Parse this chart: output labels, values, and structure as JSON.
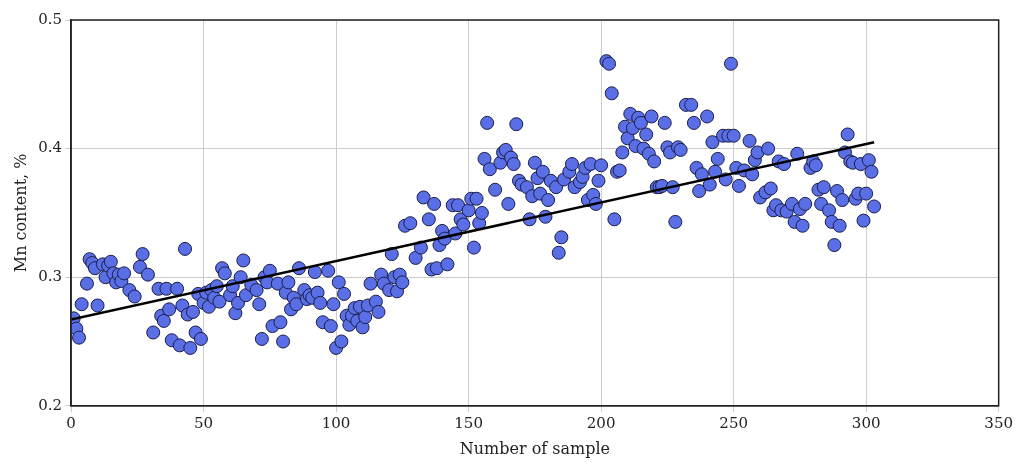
{
  "chart_data": {
    "type": "scatter",
    "xlabel": "Number of sample",
    "ylabel": "Mn content, %",
    "xlim": [
      0,
      350
    ],
    "xticks": [
      0,
      50,
      100,
      150,
      200,
      250,
      300,
      350
    ],
    "ylim": [
      0.2,
      0.5
    ],
    "yticks": [
      0.2,
      0.3,
      0.4,
      0.5
    ],
    "grid": true,
    "legend": false,
    "marker": "circle",
    "series": [
      {
        "type": "scatter",
        "color": "#5a6ee6",
        "x": [
          1,
          2,
          3,
          4,
          6,
          7,
          8,
          9,
          10,
          12,
          13,
          14,
          15,
          16,
          17,
          18,
          19,
          20,
          22,
          24,
          26,
          27,
          29,
          31,
          33,
          34,
          35,
          36,
          37,
          38,
          40,
          41,
          42,
          43,
          44,
          45,
          46,
          47,
          48,
          49,
          50,
          51,
          52,
          53,
          54,
          55,
          56,
          57,
          58,
          60,
          61,
          62,
          63,
          64,
          65,
          66,
          68,
          70,
          71,
          72,
          73,
          74,
          75,
          76,
          78,
          79,
          80,
          81,
          82,
          83,
          84,
          85,
          86,
          88,
          89,
          90,
          91,
          92,
          93,
          94,
          95,
          97,
          98,
          99,
          100,
          101,
          102,
          103,
          104,
          105,
          106,
          107,
          108,
          109,
          110,
          111,
          112,
          113,
          115,
          116,
          117,
          118,
          120,
          121,
          122,
          123,
          124,
          125,
          126,
          128,
          130,
          132,
          133,
          135,
          136,
          137,
          138,
          139,
          140,
          141,
          142,
          144,
          145,
          146,
          147,
          148,
          150,
          151,
          152,
          153,
          154,
          155,
          156,
          157,
          158,
          160,
          162,
          163,
          164,
          165,
          166,
          167,
          168,
          169,
          170,
          172,
          173,
          174,
          175,
          176,
          177,
          178,
          179,
          180,
          181,
          183,
          184,
          185,
          186,
          188,
          189,
          190,
          192,
          193,
          194,
          195,
          196,
          197,
          198,
          199,
          200,
          202,
          203,
          204,
          205,
          206,
          207,
          208,
          209,
          210,
          211,
          212,
          213,
          214,
          215,
          216,
          217,
          218,
          219,
          220,
          221,
          222,
          223,
          224,
          225,
          226,
          227,
          228,
          229,
          230,
          232,
          234,
          235,
          236,
          237,
          238,
          240,
          241,
          242,
          243,
          244,
          246,
          247,
          248,
          249,
          250,
          251,
          252,
          254,
          256,
          257,
          258,
          259,
          260,
          262,
          263,
          264,
          265,
          266,
          267,
          268,
          269,
          270,
          272,
          273,
          274,
          275,
          276,
          277,
          279,
          280,
          281,
          282,
          283,
          284,
          286,
          287,
          288,
          289,
          290,
          291,
          292,
          293,
          294,
          295,
          296,
          297,
          298,
          299,
          300,
          301,
          302,
          303
        ],
        "values": [
          0.268,
          0.26,
          0.253,
          0.279,
          0.295,
          0.314,
          0.311,
          0.307,
          0.278,
          0.31,
          0.3,
          0.309,
          0.312,
          0.303,
          0.296,
          0.302,
          0.297,
          0.303,
          0.29,
          0.285,
          0.308,
          0.318,
          0.302,
          0.257,
          0.291,
          0.27,
          0.266,
          0.291,
          0.275,
          0.251,
          0.291,
          0.247,
          0.278,
          0.322,
          0.271,
          0.245,
          0.273,
          0.257,
          0.287,
          0.252,
          0.28,
          0.288,
          0.277,
          0.29,
          0.284,
          0.293,
          0.281,
          0.307,
          0.303,
          0.286,
          0.293,
          0.272,
          0.28,
          0.3,
          0.313,
          0.286,
          0.294,
          0.29,
          0.279,
          0.252,
          0.3,
          0.296,
          0.305,
          0.262,
          0.295,
          0.265,
          0.25,
          0.288,
          0.296,
          0.275,
          0.284,
          0.279,
          0.307,
          0.29,
          0.283,
          0.286,
          0.284,
          0.304,
          0.288,
          0.28,
          0.265,
          0.305,
          0.262,
          0.279,
          0.245,
          0.296,
          0.25,
          0.287,
          0.27,
          0.263,
          0.27,
          0.276,
          0.266,
          0.277,
          0.261,
          0.269,
          0.278,
          0.295,
          0.281,
          0.273,
          0.302,
          0.295,
          0.29,
          0.318,
          0.3,
          0.289,
          0.302,
          0.296,
          0.34,
          0.342,
          0.315,
          0.323,
          0.362,
          0.345,
          0.306,
          0.357,
          0.307,
          0.325,
          0.336,
          0.33,
          0.31,
          0.356,
          0.334,
          0.356,
          0.345,
          0.341,
          0.352,
          0.361,
          0.323,
          0.361,
          0.342,
          0.35,
          0.392,
          0.42,
          0.384,
          0.368,
          0.389,
          0.397,
          0.399,
          0.357,
          0.393,
          0.388,
          0.419,
          0.375,
          0.372,
          0.37,
          0.345,
          0.363,
          0.389,
          0.377,
          0.365,
          0.382,
          0.347,
          0.36,
          0.375,
          0.37,
          0.319,
          0.331,
          0.376,
          0.382,
          0.388,
          0.37,
          0.374,
          0.378,
          0.385,
          0.36,
          0.388,
          0.364,
          0.357,
          0.375,
          0.387,
          0.468,
          0.466,
          0.443,
          0.345,
          0.382,
          0.383,
          0.397,
          0.417,
          0.408,
          0.427,
          0.416,
          0.402,
          0.424,
          0.42,
          0.4,
          0.411,
          0.396,
          0.425,
          0.39,
          0.37,
          0.37,
          0.371,
          0.42,
          0.401,
          0.397,
          0.37,
          0.343,
          0.401,
          0.399,
          0.434,
          0.434,
          0.42,
          0.385,
          0.367,
          0.38,
          0.425,
          0.372,
          0.405,
          0.382,
          0.392,
          0.41,
          0.376,
          0.41,
          0.466,
          0.41,
          0.385,
          0.371,
          0.383,
          0.406,
          0.38,
          0.391,
          0.397,
          0.362,
          0.366,
          0.4,
          0.369,
          0.352,
          0.356,
          0.39,
          0.352,
          0.388,
          0.351,
          0.357,
          0.343,
          0.396,
          0.353,
          0.34,
          0.357,
          0.385,
          0.39,
          0.387,
          0.368,
          0.357,
          0.37,
          0.352,
          0.343,
          0.325,
          0.367,
          0.34,
          0.36,
          0.397,
          0.411,
          0.39,
          0.389,
          0.361,
          0.365,
          0.388,
          0.344,
          0.365,
          0.391,
          0.382,
          0.355
        ]
      },
      {
        "type": "line",
        "color": "#000000",
        "marker": "none",
        "x": [
          0,
          303
        ],
        "values": [
          0.267,
          0.405
        ]
      }
    ]
  }
}
